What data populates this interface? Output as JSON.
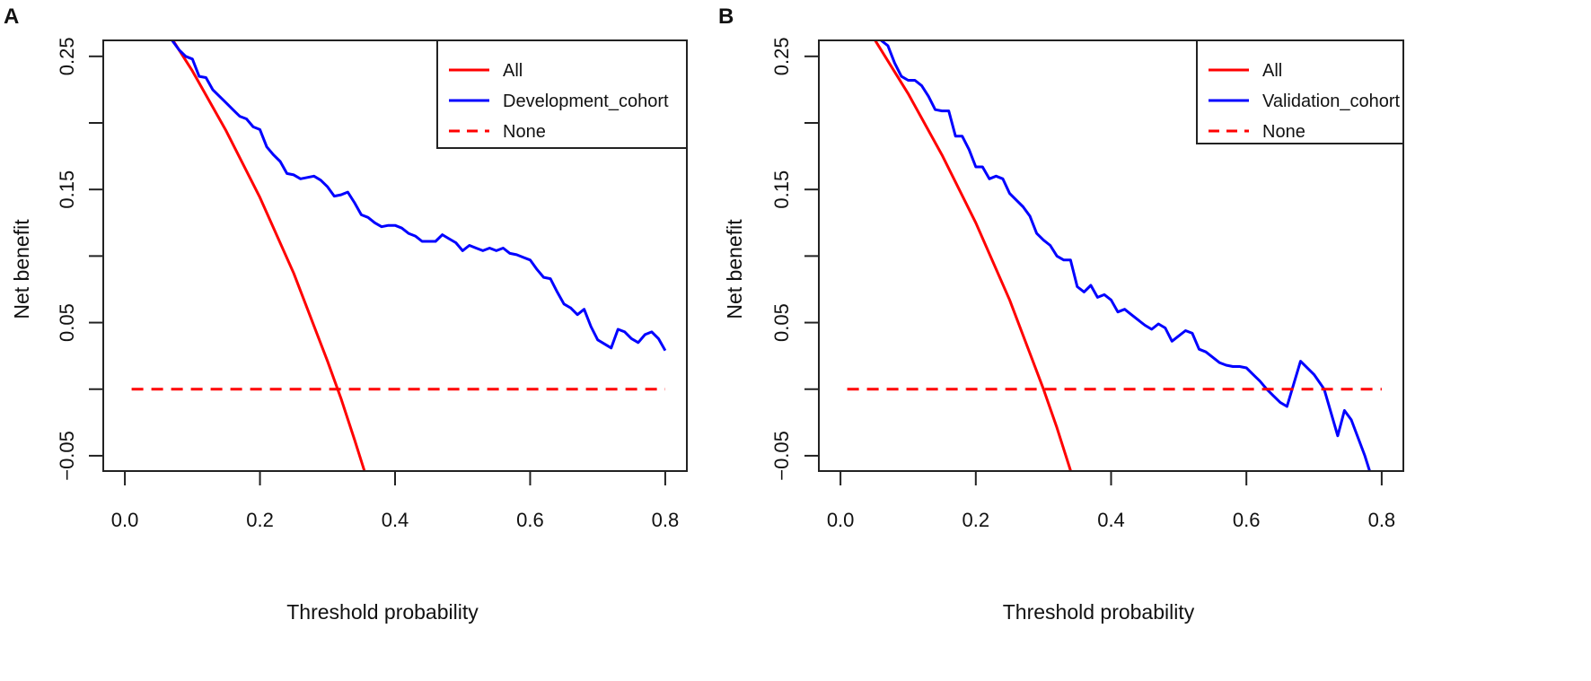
{
  "chart_data": [
    {
      "panel_label": "A",
      "type": "line",
      "xlabel": "Threshold probability",
      "ylabel": "Net benefit",
      "xlim": [
        -0.032,
        0.832
      ],
      "ylim": [
        -0.0615,
        0.262
      ],
      "xticks": [
        0.0,
        0.2,
        0.4,
        0.6,
        0.8
      ],
      "xtick_labels": [
        "0.0",
        "0.2",
        "0.4",
        "0.6",
        "0.8"
      ],
      "yticks": [
        -0.05,
        0.0,
        0.05,
        0.1,
        0.15,
        0.2,
        0.25
      ],
      "ytick_labels": [
        "−0.05",
        "",
        "0.05",
        "",
        "0.15",
        "",
        "0.25"
      ],
      "grid": false,
      "legend_position": "top-right",
      "legend": [
        "All",
        "Development_cohort",
        "None"
      ],
      "series": [
        {
          "name": "All",
          "color": "#ff0000",
          "style": "solid",
          "x": [
            0.07,
            0.1,
            0.15,
            0.2,
            0.25,
            0.3,
            0.32,
            0.34,
            0.36
          ],
          "y": [
            0.263,
            0.239,
            0.194,
            0.144,
            0.087,
            0.021,
            -0.007,
            -0.038,
            -0.07
          ]
        },
        {
          "name": "Development_cohort",
          "color": "#0000ff",
          "style": "solid",
          "x": [
            0.07,
            0.08,
            0.09,
            0.1,
            0.11,
            0.12,
            0.13,
            0.14,
            0.15,
            0.16,
            0.17,
            0.18,
            0.19,
            0.2,
            0.21,
            0.22,
            0.23,
            0.24,
            0.25,
            0.26,
            0.27,
            0.28,
            0.29,
            0.3,
            0.31,
            0.32,
            0.33,
            0.34,
            0.35,
            0.36,
            0.37,
            0.38,
            0.39,
            0.4,
            0.41,
            0.42,
            0.43,
            0.44,
            0.45,
            0.46,
            0.47,
            0.48,
            0.49,
            0.5,
            0.51,
            0.52,
            0.53,
            0.54,
            0.55,
            0.56,
            0.57,
            0.58,
            0.59,
            0.6,
            0.61,
            0.62,
            0.63,
            0.64,
            0.65,
            0.66,
            0.67,
            0.68,
            0.69,
            0.7,
            0.71,
            0.72,
            0.73,
            0.74,
            0.75,
            0.76,
            0.77,
            0.78,
            0.79,
            0.8
          ],
          "y": [
            0.262,
            0.255,
            0.25,
            0.248,
            0.235,
            0.234,
            0.225,
            0.22,
            0.215,
            0.21,
            0.205,
            0.203,
            0.197,
            0.195,
            0.182,
            0.176,
            0.171,
            0.162,
            0.161,
            0.158,
            0.159,
            0.16,
            0.157,
            0.152,
            0.145,
            0.146,
            0.148,
            0.14,
            0.131,
            0.129,
            0.125,
            0.122,
            0.123,
            0.123,
            0.121,
            0.117,
            0.115,
            0.111,
            0.111,
            0.111,
            0.116,
            0.113,
            0.11,
            0.104,
            0.108,
            0.106,
            0.104,
            0.106,
            0.104,
            0.106,
            0.102,
            0.101,
            0.099,
            0.097,
            0.09,
            0.084,
            0.083,
            0.073,
            0.064,
            0.061,
            0.056,
            0.06,
            0.047,
            0.037,
            0.034,
            0.031,
            0.045,
            0.043,
            0.038,
            0.035,
            0.041,
            0.043,
            0.038,
            0.029
          ]
        },
        {
          "name": "None",
          "color": "#ff0000",
          "style": "dashed",
          "x": [
            0.01,
            0.8
          ],
          "y": [
            0,
            0
          ]
        }
      ]
    },
    {
      "panel_label": "B",
      "type": "line",
      "xlabel": "Threshold probability",
      "ylabel": "Net benefit",
      "xlim": [
        -0.032,
        0.832
      ],
      "ylim": [
        -0.0615,
        0.262
      ],
      "xticks": [
        0.0,
        0.2,
        0.4,
        0.6,
        0.8
      ],
      "xtick_labels": [
        "0.0",
        "0.2",
        "0.4",
        "0.6",
        "0.8"
      ],
      "yticks": [
        -0.05,
        0.0,
        0.05,
        0.1,
        0.15,
        0.2,
        0.25
      ],
      "ytick_labels": [
        "−0.05",
        "",
        "0.05",
        "",
        "0.15",
        "",
        "0.25"
      ],
      "grid": false,
      "legend_position": "top-right",
      "legend": [
        "All",
        "Validation_cohort",
        "None"
      ],
      "series": [
        {
          "name": "All",
          "color": "#ff0000",
          "style": "solid",
          "x": [
            0.05,
            0.1,
            0.15,
            0.2,
            0.25,
            0.3,
            0.32,
            0.34
          ],
          "y": [
            0.263,
            0.222,
            0.176,
            0.125,
            0.067,
            0.0,
            -0.029,
            -0.061
          ]
        },
        {
          "name": "Validation_cohort",
          "color": "#0000ff",
          "style": "solid",
          "x": [
            0.06,
            0.07,
            0.08,
            0.09,
            0.1,
            0.11,
            0.12,
            0.13,
            0.14,
            0.15,
            0.16,
            0.17,
            0.18,
            0.19,
            0.2,
            0.21,
            0.22,
            0.23,
            0.24,
            0.25,
            0.26,
            0.27,
            0.28,
            0.29,
            0.3,
            0.31,
            0.32,
            0.33,
            0.34,
            0.35,
            0.36,
            0.37,
            0.38,
            0.39,
            0.4,
            0.41,
            0.42,
            0.43,
            0.44,
            0.45,
            0.46,
            0.47,
            0.48,
            0.49,
            0.5,
            0.51,
            0.52,
            0.53,
            0.54,
            0.55,
            0.56,
            0.57,
            0.58,
            0.59,
            0.6,
            0.61,
            0.62,
            0.63,
            0.64,
            0.65,
            0.66,
            0.68,
            0.7,
            0.715,
            0.735,
            0.745,
            0.755,
            0.775,
            0.785
          ],
          "y": [
            0.262,
            0.258,
            0.245,
            0.235,
            0.232,
            0.232,
            0.228,
            0.22,
            0.21,
            0.209,
            0.209,
            0.19,
            0.19,
            0.18,
            0.167,
            0.167,
            0.158,
            0.16,
            0.158,
            0.147,
            0.142,
            0.137,
            0.13,
            0.117,
            0.112,
            0.108,
            0.1,
            0.097,
            0.097,
            0.077,
            0.073,
            0.078,
            0.069,
            0.071,
            0.067,
            0.058,
            0.06,
            0.056,
            0.052,
            0.048,
            0.045,
            0.049,
            0.046,
            0.036,
            0.04,
            0.044,
            0.042,
            0.03,
            0.028,
            0.024,
            0.02,
            0.018,
            0.017,
            0.017,
            0.016,
            0.011,
            0.006,
            0.0,
            -0.005,
            -0.01,
            -0.013,
            0.021,
            0.011,
            0.0,
            -0.035,
            -0.016,
            -0.023,
            -0.05,
            -0.066
          ]
        },
        {
          "name": "None",
          "color": "#ff0000",
          "style": "dashed",
          "x": [
            0.01,
            0.8
          ],
          "y": [
            0,
            0
          ]
        }
      ]
    }
  ]
}
